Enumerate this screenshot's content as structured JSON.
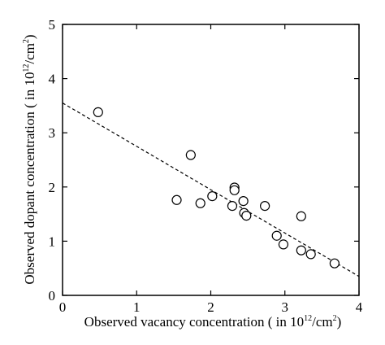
{
  "chart_data": {
    "type": "scatter",
    "title": "",
    "xlabel": "Observed vacancy concentration ( in 10",
    "xlabel_sup": "12",
    "xlabel_tail": "/cm",
    "xlabel_sup2": "2",
    "xlabel_close": ")",
    "ylabel": "Observed dopant concentration ( in 10",
    "ylabel_sup": "12",
    "ylabel_tail": "/cm",
    "ylabel_sup2": "2",
    "ylabel_close": ")",
    "xlim": [
      0,
      4
    ],
    "ylim": [
      0,
      5
    ],
    "xticks": [
      "0",
      "1",
      "2",
      "3",
      "4"
    ],
    "yticks": [
      "0",
      "1",
      "2",
      "3",
      "4",
      "5"
    ],
    "grid": false,
    "marker": "open-circle",
    "points": [
      {
        "x": 0.48,
        "y": 3.38
      },
      {
        "x": 1.54,
        "y": 1.76
      },
      {
        "x": 1.73,
        "y": 2.59
      },
      {
        "x": 1.86,
        "y": 1.7
      },
      {
        "x": 2.02,
        "y": 1.83
      },
      {
        "x": 2.29,
        "y": 1.65
      },
      {
        "x": 2.32,
        "y": 1.99
      },
      {
        "x": 2.32,
        "y": 1.94
      },
      {
        "x": 2.44,
        "y": 1.74
      },
      {
        "x": 2.45,
        "y": 1.52
      },
      {
        "x": 2.48,
        "y": 1.47
      },
      {
        "x": 2.73,
        "y": 1.65
      },
      {
        "x": 2.89,
        "y": 1.1
      },
      {
        "x": 2.98,
        "y": 0.94
      },
      {
        "x": 3.22,
        "y": 1.46
      },
      {
        "x": 3.22,
        "y": 0.83
      },
      {
        "x": 3.35,
        "y": 0.76
      },
      {
        "x": 3.67,
        "y": 0.59
      }
    ],
    "fit_line": {
      "style": "dashed",
      "x": [
        0,
        4
      ],
      "y": [
        3.55,
        0.35
      ]
    }
  }
}
